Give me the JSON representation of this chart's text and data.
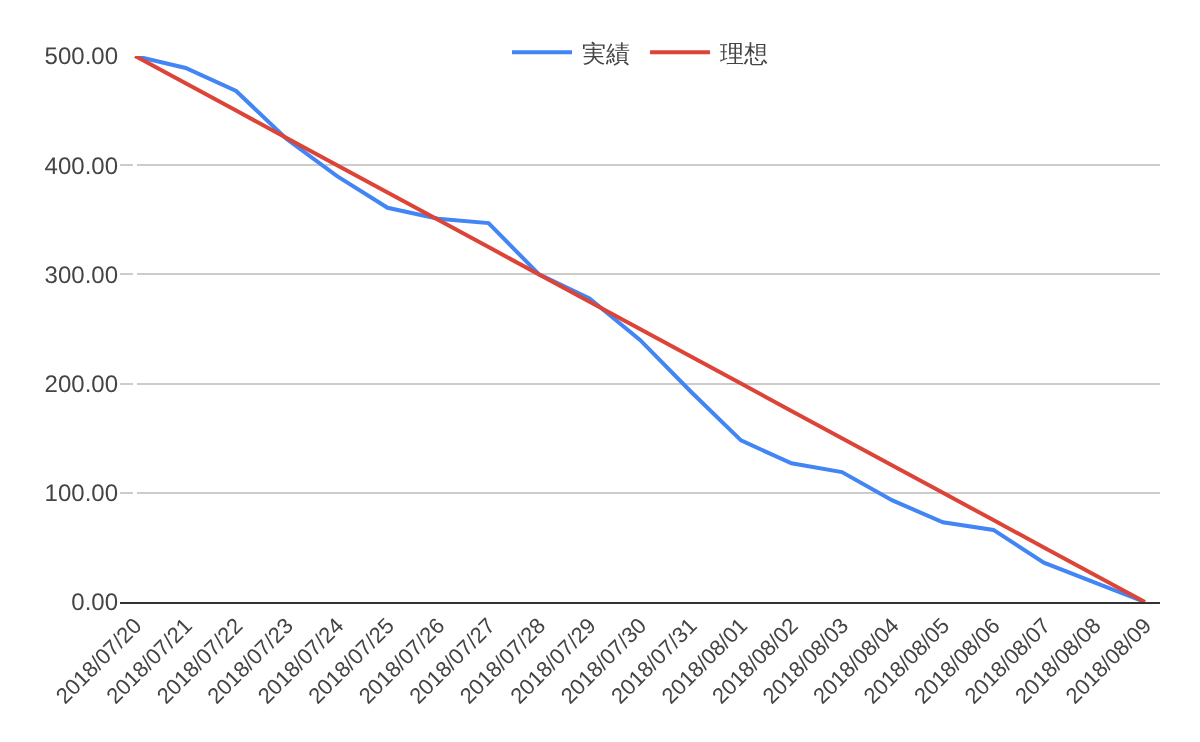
{
  "chart_data": {
    "type": "line",
    "categories": [
      "2018/07/20",
      "2018/07/21",
      "2018/07/22",
      "2018/07/23",
      "2018/07/24",
      "2018/07/25",
      "2018/07/26",
      "2018/07/27",
      "2018/07/28",
      "2018/07/29",
      "2018/07/30",
      "2018/07/31",
      "2018/08/01",
      "2018/08/02",
      "2018/08/03",
      "2018/08/04",
      "2018/08/05",
      "2018/08/06",
      "2018/08/07",
      "2018/08/08",
      "2018/08/09"
    ],
    "series": [
      {
        "name": "実績",
        "color": "#4285f4",
        "values": [
          500,
          489,
          468,
          424,
          390,
          361,
          351,
          347,
          300,
          278,
          240,
          193,
          148,
          127,
          119,
          93,
          73,
          66,
          36,
          18,
          0
        ]
      },
      {
        "name": "理想",
        "color": "#db4437",
        "values": [
          500,
          475,
          450,
          425,
          400,
          375,
          350,
          325,
          300,
          275,
          250,
          225,
          200,
          175,
          150,
          125,
          100,
          75,
          50,
          25,
          0
        ]
      }
    ],
    "ylim": [
      0,
      500
    ],
    "yticks": [
      {
        "value": 0,
        "label": "0.00"
      },
      {
        "value": 100,
        "label": "100.00"
      },
      {
        "value": 200,
        "label": "200.00"
      },
      {
        "value": 300,
        "label": "300.00"
      },
      {
        "value": 400,
        "label": "400.00"
      },
      {
        "value": 500,
        "label": "500.00"
      }
    ],
    "grid": "y",
    "legend": "top",
    "marker": "none",
    "line_style": "solid"
  }
}
